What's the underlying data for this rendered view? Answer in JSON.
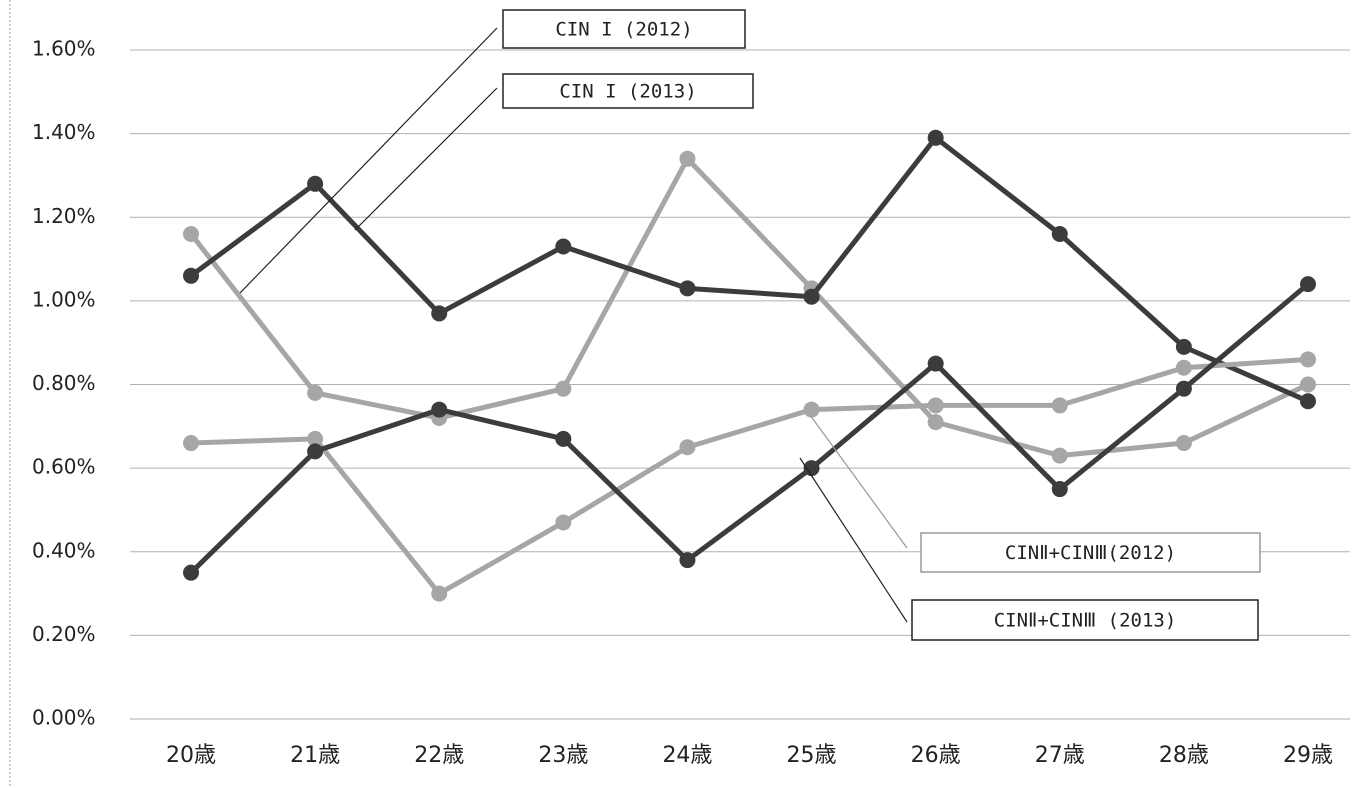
{
  "chart_data": {
    "type": "line",
    "categories": [
      "20歳",
      "21歳",
      "22歳",
      "23歳",
      "24歳",
      "25歳",
      "26歳",
      "27歳",
      "28歳",
      "29歳"
    ],
    "series": [
      {
        "name": "CIN I (2012)",
        "color": "#a6a6a6",
        "values": [
          1.16,
          0.78,
          0.72,
          0.79,
          1.34,
          1.03,
          0.71,
          0.63,
          0.66,
          0.8
        ]
      },
      {
        "name": "CIN I (2013)",
        "color": "#3c3c3c",
        "values": [
          1.06,
          1.28,
          0.97,
          1.13,
          1.03,
          1.01,
          1.39,
          1.16,
          0.89,
          0.76
        ]
      },
      {
        "name": "CINⅡ+CINⅢ(2012)",
        "color": "#a6a6a6",
        "values": [
          0.66,
          0.67,
          0.3,
          0.47,
          0.65,
          0.74,
          0.75,
          0.75,
          0.84,
          0.86
        ]
      },
      {
        "name": "CINⅡ+CINⅢ (2013)",
        "color": "#3c3c3c",
        "values": [
          0.35,
          0.64,
          0.74,
          0.67,
          0.38,
          0.6,
          0.85,
          0.55,
          0.79,
          1.04
        ]
      }
    ],
    "ylim": [
      0,
      1.6
    ],
    "yticks": [
      {
        "value": 0,
        "label": "0.00%"
      },
      {
        "value": 0.2,
        "label": "0.20%"
      },
      {
        "value": 0.4,
        "label": "0.40%"
      },
      {
        "value": 0.6,
        "label": "0.60%"
      },
      {
        "value": 0.8,
        "label": "0.80%"
      },
      {
        "value": 1.0,
        "label": "1.00%"
      },
      {
        "value": 1.2,
        "label": "1.20%"
      },
      {
        "value": 1.4,
        "label": "1.40%"
      },
      {
        "value": 1.6,
        "label": "1.60%"
      }
    ],
    "grid": true
  }
}
